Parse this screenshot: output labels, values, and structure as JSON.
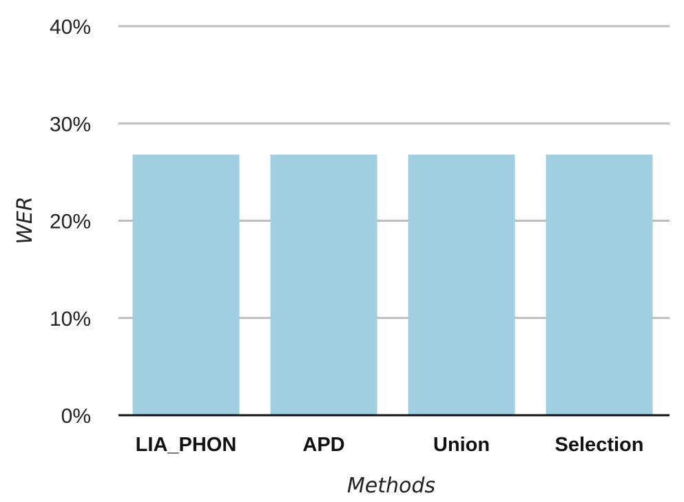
{
  "chart_data": {
    "type": "bar",
    "categories": [
      "LIA_PHON",
      "APD",
      "Union",
      "Selection"
    ],
    "values": [
      26.8,
      26.8,
      26.8,
      26.8
    ],
    "xlabel": "Methods",
    "ylabel": "WER",
    "ylim": [
      0,
      40
    ],
    "yticks": [
      "0%",
      "10%",
      "20%",
      "30%",
      "40%"
    ],
    "grid": true,
    "legend": "none",
    "colors": {
      "bar": "#9fcfe0",
      "grid": "#bdbdbd",
      "axis": "#111111"
    }
  }
}
